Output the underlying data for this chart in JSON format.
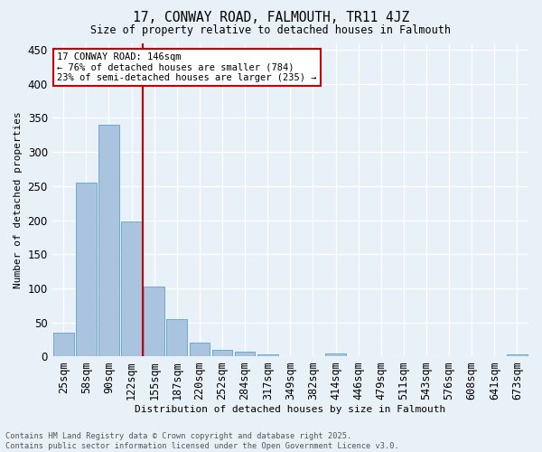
{
  "title1": "17, CONWAY ROAD, FALMOUTH, TR11 4JZ",
  "title2": "Size of property relative to detached houses in Falmouth",
  "xlabel": "Distribution of detached houses by size in Falmouth",
  "ylabel": "Number of detached properties",
  "categories": [
    "25sqm",
    "58sqm",
    "90sqm",
    "122sqm",
    "155sqm",
    "187sqm",
    "220sqm",
    "252sqm",
    "284sqm",
    "317sqm",
    "349sqm",
    "382sqm",
    "414sqm",
    "446sqm",
    "479sqm",
    "511sqm",
    "543sqm",
    "576sqm",
    "608sqm",
    "641sqm",
    "673sqm"
  ],
  "values": [
    35,
    255,
    340,
    198,
    103,
    55,
    20,
    10,
    7,
    3,
    0,
    0,
    4,
    0,
    0,
    0,
    0,
    0,
    0,
    0,
    3
  ],
  "bar_color": "#aac4e0",
  "bar_edge_color": "#6aaad4",
  "vline_color": "#cc0000",
  "annotation_text": "17 CONWAY ROAD: 146sqm\n← 76% of detached houses are smaller (784)\n23% of semi-detached houses are larger (235) →",
  "annotation_box_color": "#ffffff",
  "annotation_edge_color": "#cc0000",
  "ylim": [
    0,
    460
  ],
  "yticks": [
    0,
    50,
    100,
    150,
    200,
    250,
    300,
    350,
    400,
    450
  ],
  "bg_color": "#e8f0f8",
  "grid_color": "#ffffff",
  "footnote": "Contains HM Land Registry data © Crown copyright and database right 2025.\nContains public sector information licensed under the Open Government Licence v3.0."
}
